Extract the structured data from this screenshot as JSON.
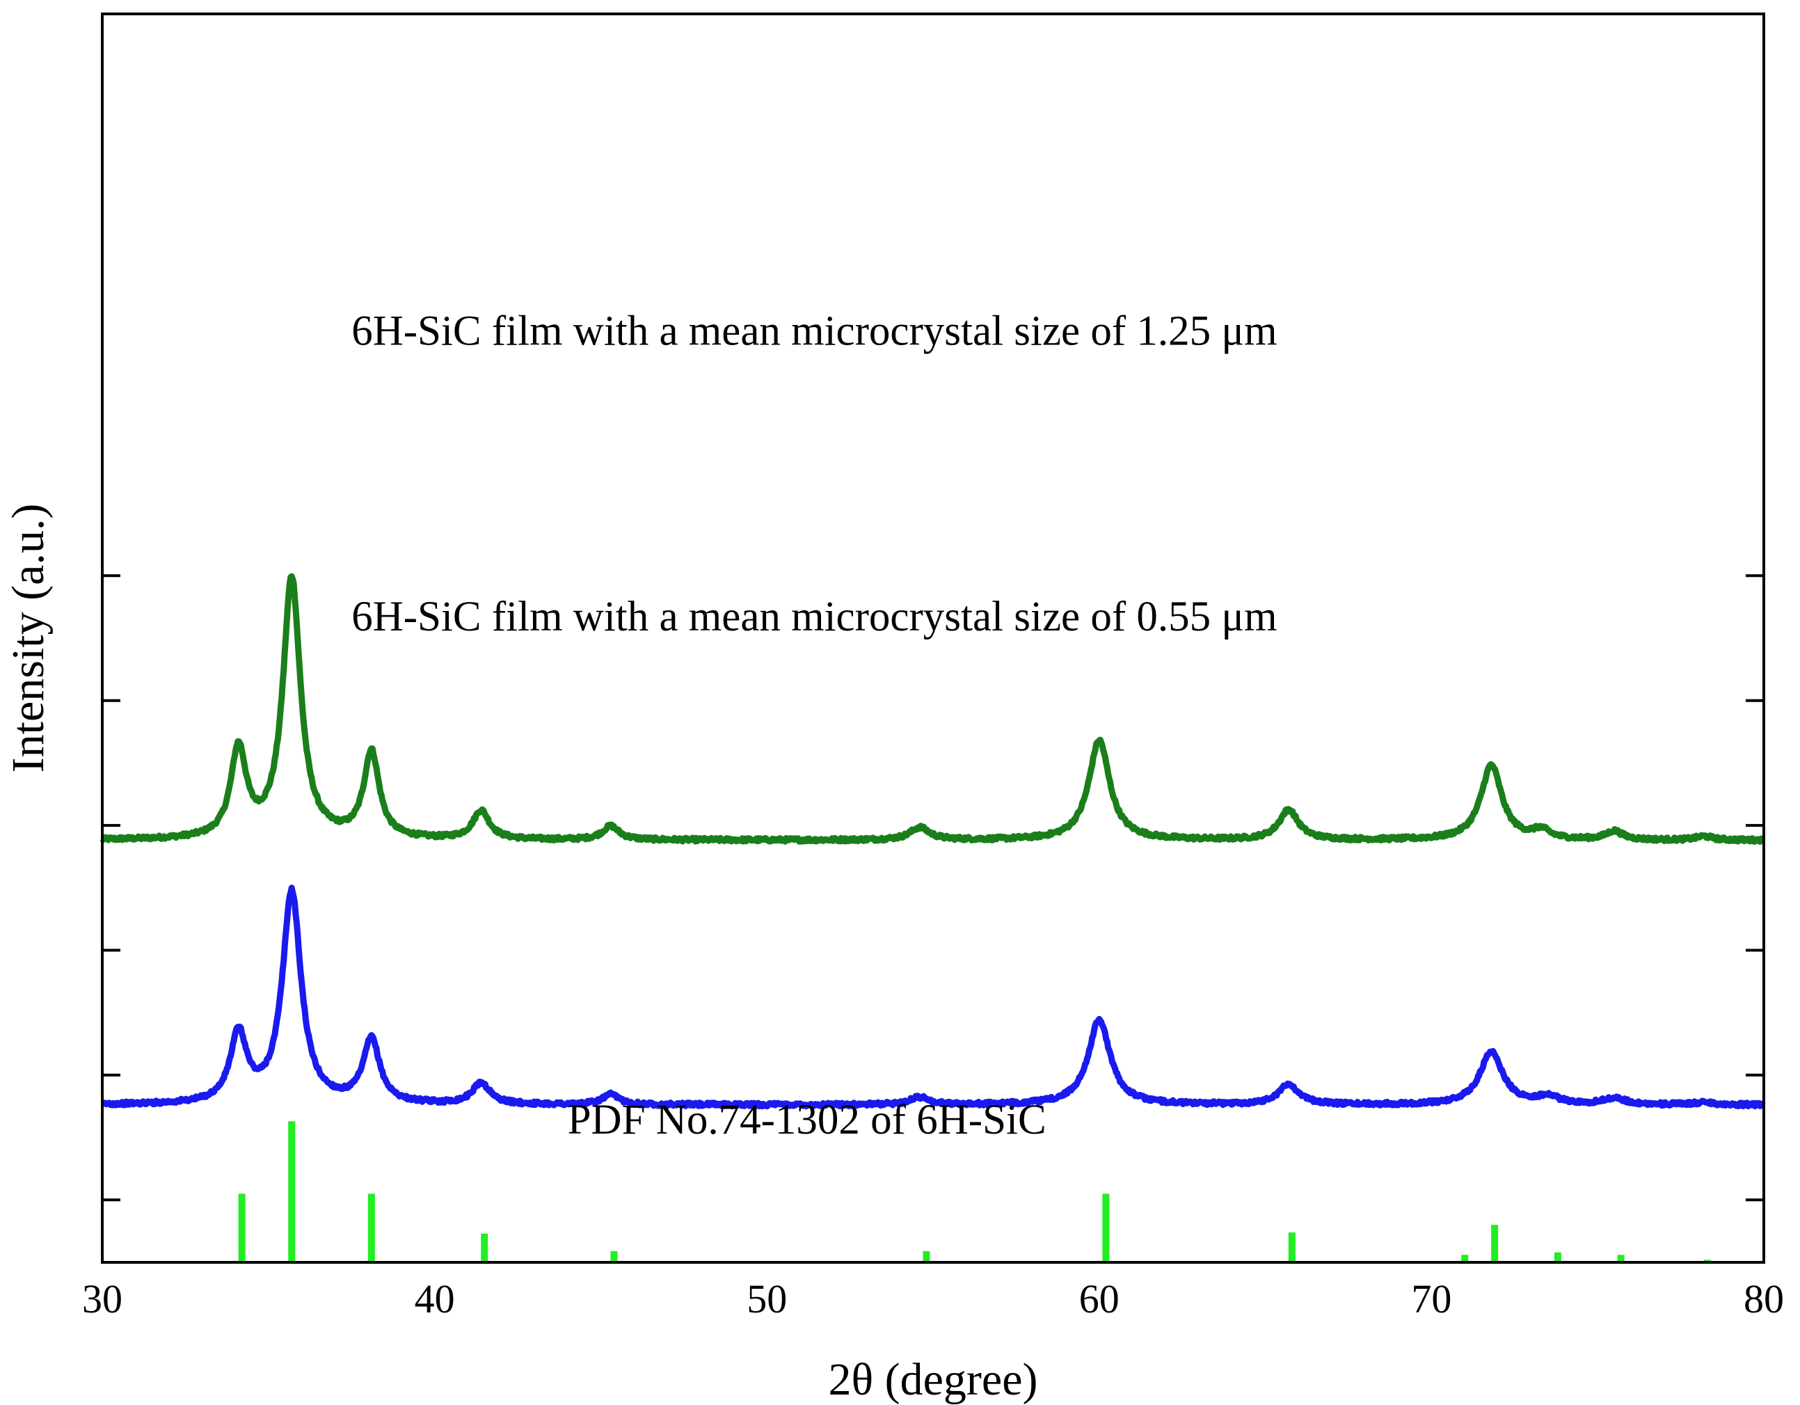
{
  "chart_data": {
    "type": "line",
    "title": "",
    "xlabel": "2θ (degree)",
    "ylabel": "Intensity (a.u.)",
    "xlim": [
      30,
      80
    ],
    "ylim": [
      0,
      100
    ],
    "x_ticks": [
      30,
      40,
      50,
      60,
      70,
      80
    ],
    "x_tick_labels": [
      "30",
      "40",
      "50",
      "60",
      "70",
      "80"
    ],
    "y_major_ticks": [
      5,
      15,
      25,
      35,
      45,
      55
    ],
    "y_tick_labels_shown": false,
    "grid": false,
    "legend": "none",
    "annotations": [
      {
        "id": "label_125",
        "text": "6H-SiC film with a mean microcrystal size of 1.25 μm",
        "x": 37.5,
        "y": 73.5
      },
      {
        "id": "label_055",
        "text": "6H-SiC film with a mean microcrystal size of 0.55 μm",
        "x": 37.5,
        "y": 50.6
      },
      {
        "id": "label_pdf",
        "text": "PDF No.74-1302 of 6H-SiC",
        "x": 44.0,
        "y": 10.3
      }
    ],
    "series": [
      {
        "name": "6H-SiC film 1.25 μm",
        "color": "#1a7f1a",
        "baseline": 33.8,
        "peaks": [
          {
            "pos": 34.1,
            "height": 7.1,
            "width": 0.28
          },
          {
            "pos": 35.7,
            "height": 20.9,
            "width": 0.32
          },
          {
            "pos": 38.1,
            "height": 6.9,
            "width": 0.28
          },
          {
            "pos": 41.4,
            "height": 2.3,
            "width": 0.3
          },
          {
            "pos": 45.3,
            "height": 1.1,
            "width": 0.3
          },
          {
            "pos": 54.6,
            "height": 1.0,
            "width": 0.35
          },
          {
            "pos": 60.0,
            "height": 8.0,
            "width": 0.38
          },
          {
            "pos": 65.7,
            "height": 2.4,
            "width": 0.35
          },
          {
            "pos": 71.8,
            "height": 6.0,
            "width": 0.38
          },
          {
            "pos": 73.3,
            "height": 0.7,
            "width": 0.3
          },
          {
            "pos": 75.5,
            "height": 0.7,
            "width": 0.3
          },
          {
            "pos": 78.2,
            "height": 0.3,
            "width": 0.3
          }
        ]
      },
      {
        "name": "6H-SiC film 0.55 μm",
        "color": "#1a1aef",
        "baseline": 12.6,
        "peaks": [
          {
            "pos": 34.1,
            "height": 5.5,
            "width": 0.3
          },
          {
            "pos": 35.7,
            "height": 17.0,
            "width": 0.34
          },
          {
            "pos": 38.1,
            "height": 5.1,
            "width": 0.3
          },
          {
            "pos": 41.4,
            "height": 1.7,
            "width": 0.32
          },
          {
            "pos": 45.3,
            "height": 0.8,
            "width": 0.3
          },
          {
            "pos": 54.6,
            "height": 0.6,
            "width": 0.35
          },
          {
            "pos": 60.0,
            "height": 6.8,
            "width": 0.4
          },
          {
            "pos": 65.7,
            "height": 1.6,
            "width": 0.38
          },
          {
            "pos": 71.8,
            "height": 4.2,
            "width": 0.42
          },
          {
            "pos": 73.5,
            "height": 0.6,
            "width": 0.4
          },
          {
            "pos": 75.5,
            "height": 0.5,
            "width": 0.4
          },
          {
            "pos": 78.2,
            "height": 0.2,
            "width": 0.35
          }
        ]
      }
    ],
    "reference_pattern": {
      "name": "PDF No.74-1302 of 6H-SiC",
      "color": "#22ee22",
      "lines": [
        {
          "x": 34.2,
          "intensity": 5.5
        },
        {
          "x": 35.7,
          "intensity": 11.3
        },
        {
          "x": 38.1,
          "intensity": 5.5
        },
        {
          "x": 41.5,
          "intensity": 2.3
        },
        {
          "x": 45.4,
          "intensity": 0.9
        },
        {
          "x": 54.8,
          "intensity": 0.9
        },
        {
          "x": 60.2,
          "intensity": 5.5
        },
        {
          "x": 65.8,
          "intensity": 2.4
        },
        {
          "x": 71.0,
          "intensity": 0.6
        },
        {
          "x": 71.9,
          "intensity": 3.0
        },
        {
          "x": 73.8,
          "intensity": 0.8
        },
        {
          "x": 75.7,
          "intensity": 0.6
        },
        {
          "x": 78.3,
          "intensity": 0.2
        }
      ]
    }
  }
}
